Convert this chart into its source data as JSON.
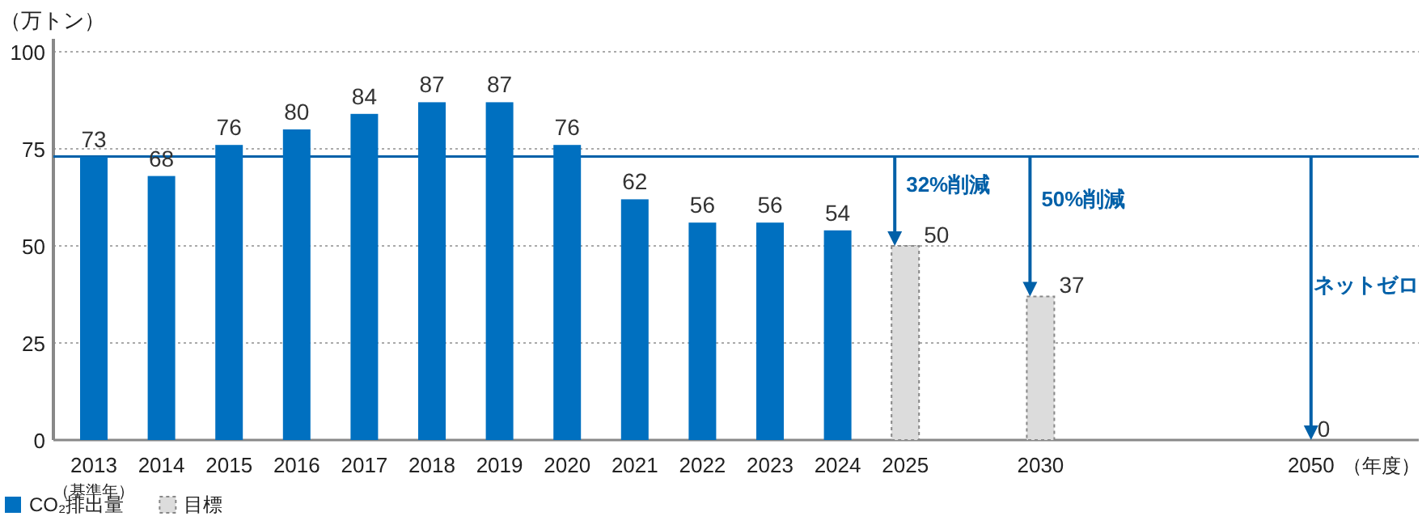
{
  "chart_data": {
    "type": "bar",
    "categories": [
      "2013",
      "2014",
      "2015",
      "2016",
      "2017",
      "2018",
      "2019",
      "2020",
      "2021",
      "2022",
      "2023",
      "2024",
      "2025",
      null,
      "2030",
      null,
      null,
      null,
      "2050"
    ],
    "series": [
      {
        "name": "CO₂排出量",
        "color": "#0070c0",
        "values": [
          73,
          68,
          76,
          80,
          84,
          87,
          87,
          76,
          62,
          56,
          56,
          54,
          null,
          null,
          null,
          null,
          null,
          null,
          null
        ]
      },
      {
        "name": "目標",
        "color": "#dcdcdc",
        "line_style": "dashed",
        "values": [
          null,
          null,
          null,
          null,
          null,
          null,
          null,
          null,
          null,
          null,
          null,
          null,
          50,
          null,
          37,
          null,
          null,
          null,
          0
        ]
      }
    ],
    "ylim": [
      0,
      100
    ],
    "yticks": [
      0,
      25,
      50,
      75,
      100
    ],
    "grid": "y",
    "ylabel": "（万トン）",
    "xlabel": "（年度）",
    "data_labels": true,
    "legend": "bottom left",
    "ref_lines": [
      {
        "axis": "y",
        "value": 73,
        "color": "#0060a8"
      }
    ],
    "annotations": [
      "32%削減",
      "50%削減",
      "ネットゼロ",
      "（基準年）"
    ]
  }
}
